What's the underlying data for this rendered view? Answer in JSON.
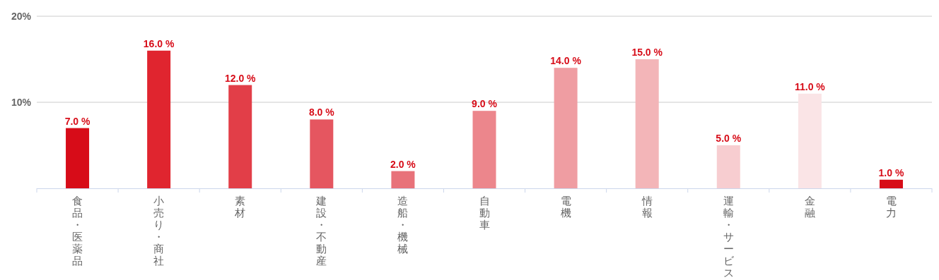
{
  "chart_data": {
    "type": "bar",
    "categories": [
      "食品・医薬品",
      "小売り・商社",
      "素材",
      "建設・不動産",
      "造船・機械",
      "自動車",
      "電機",
      "情報",
      "運輸・サービス",
      "金融",
      "電力"
    ],
    "values": [
      7,
      16,
      12,
      8,
      2,
      9,
      14,
      15,
      5,
      11,
      1
    ],
    "colors": [
      "#d70c18",
      "#e0252f",
      "#e23e48",
      "#e55660",
      "#e8727a",
      "#ec868c",
      "#ef9da2",
      "#f3b5b8",
      "#f7cdd0",
      "#fae4e6",
      "#d70c18"
    ],
    "value_labels": [
      "7.0 %",
      "16.0 %",
      "12.0 %",
      "8.0 %",
      "2.0 %",
      "9.0 %",
      "14.0 %",
      "15.0 %",
      "5.0 %",
      "11.0 %",
      "1.0 %"
    ],
    "ylim": [
      0,
      20
    ],
    "yticks": [
      {
        "value": 0,
        "label": null
      },
      {
        "value": 10,
        "label": "10%"
      },
      {
        "value": 20,
        "label": "20%"
      }
    ],
    "grid": "y"
  }
}
